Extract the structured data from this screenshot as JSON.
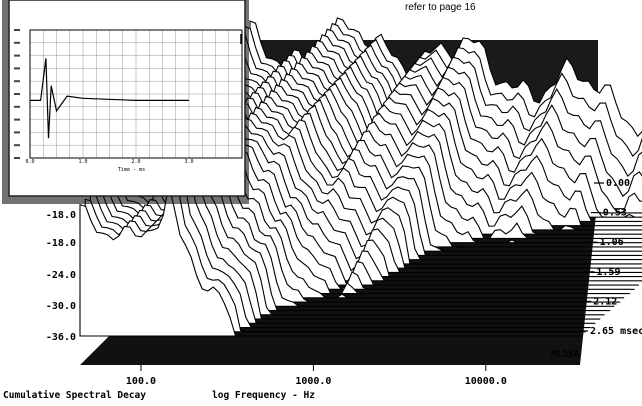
{
  "page_note": "refer to page 16",
  "chart_data": [
    {
      "type": "waterfall",
      "title": "Cumulative Spectral Decay",
      "xlabel": "log Frequency - Hz",
      "x_scale": "log",
      "x_tick_labels": [
        "100.0",
        "1000.0",
        "10000.0"
      ],
      "x_tick_values": [
        100,
        1000,
        10000
      ],
      "y_tick_labels": [
        "-18.0",
        "-18.0",
        "-24.0",
        "-30.0",
        "-36.0"
      ],
      "z_tick_labels": [
        "0.00",
        "0.53",
        "1.06",
        "1.59",
        "2.12",
        "2.65 msec"
      ],
      "z_tick_values": [
        0.0,
        0.53,
        1.06,
        1.59,
        2.12,
        2.65
      ],
      "z_unit": "msec",
      "corner_label": "MLSSA",
      "slices": 34
    },
    {
      "type": "line",
      "title": "",
      "xlabel": "Time - ms",
      "x_tick_labels": [
        "0.0",
        "1.0",
        "2.0",
        "3.0"
      ],
      "series": [
        {
          "x": [
            0.0,
            0.2,
            0.3,
            0.35,
            0.4,
            0.5,
            0.7,
            1.0,
            2.0,
            3.0
          ],
          "values": [
            0.0,
            0.0,
            1.0,
            -0.9,
            0.35,
            -0.25,
            0.1,
            0.05,
            0.0,
            0.0
          ]
        }
      ]
    }
  ]
}
